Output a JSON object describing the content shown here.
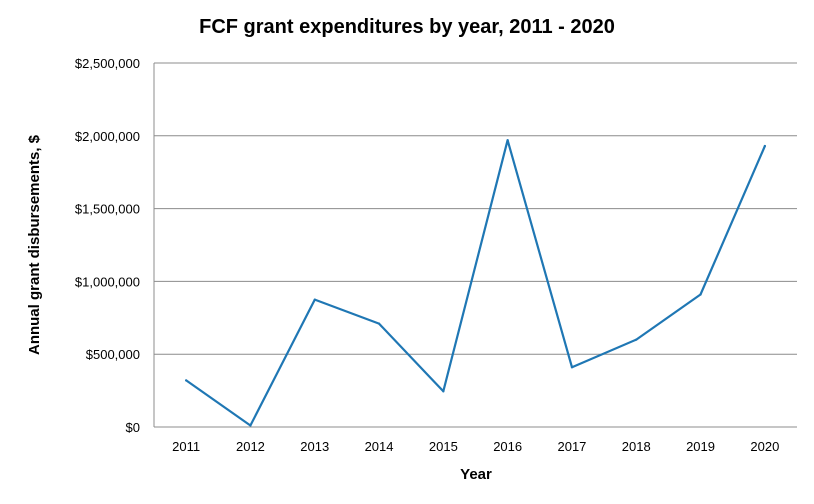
{
  "chart_data": {
    "type": "line",
    "title": "FCF grant expenditures by year, 2011 - 2020",
    "xlabel": "Year",
    "ylabel": "Annual grant disbursements, $",
    "categories": [
      "2011",
      "2012",
      "2013",
      "2014",
      "2015",
      "2016",
      "2017",
      "2018",
      "2019",
      "2020"
    ],
    "series": [
      {
        "values": [
          320000,
          10000,
          875000,
          710000,
          245000,
          1970000,
          410000,
          600000,
          910000,
          1930000
        ]
      }
    ],
    "ylim": [
      0,
      2500000
    ],
    "yticks": [
      0,
      500000,
      1000000,
      1500000,
      2000000,
      2500000
    ],
    "ytick_labels": [
      "$0",
      "$500,000",
      "$1,000,000",
      "$1,500,000",
      "$2,000,000",
      "$2,500,000"
    ],
    "grid": "horizontal",
    "legend": "none",
    "colors": {
      "series": "#1f77b4",
      "grid": "#8c8c8c"
    }
  }
}
